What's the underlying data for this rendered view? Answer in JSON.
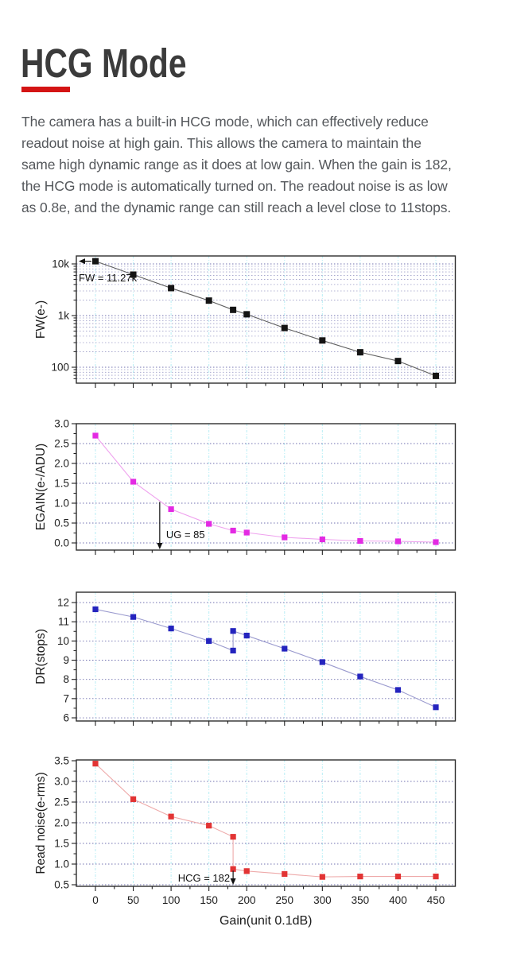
{
  "header": {
    "title": "HCG Mode",
    "accent_color": "#d41414",
    "paragraph_lines": [
      "The camera has a built-in HCG mode, which can effectively reduce",
      "readout noise at high gain. This allows the camera to maintain the",
      "same high dynamic range as it does at low gain. When the gain is 182,",
      "the HCG mode is automatically turned on. The readout noise is as low",
      "as 0.8e, and the dynamic range can still reach a level close to 11stops."
    ]
  },
  "chart_style": {
    "frame_color": "#2d2d2d",
    "tick_color": "#222222",
    "grid_vertical_color": "#b8eef5",
    "grid_horizontal_color": "#7272b0",
    "grid_horizontal_minor_color": "#9d9dc8",
    "annotation_color": "#111111"
  },
  "chart_data": [
    {
      "type": "line",
      "name": "full-well",
      "ylabel": "FW(e-)",
      "yscale": "log",
      "ylim": [
        49,
        14250
      ],
      "y_tick_labels": [
        {
          "v": 10000,
          "label": "10k"
        },
        {
          "v": 1000,
          "label": "1k"
        },
        {
          "v": 100,
          "label": "100"
        }
      ],
      "x": [
        0,
        50,
        100,
        150,
        182,
        200,
        250,
        300,
        350,
        400,
        450
      ],
      "y": [
        11270,
        6200,
        3400,
        1950,
        1290,
        1060,
        575,
        330,
        195,
        132,
        68
      ],
      "marker_color": "#141414",
      "line_color": "#5f5f5f",
      "annotation": {
        "text": "FW = 11.27k",
        "target_value": 11270
      }
    },
    {
      "type": "line",
      "name": "egain",
      "ylabel": "EGAIN(e-/ADU)",
      "yscale": "linear",
      "ylim": [
        -0.18,
        3.0
      ],
      "y_tick_labels": [
        {
          "v": 3.0,
          "label": "3.0"
        },
        {
          "v": 2.5,
          "label": "2.5"
        },
        {
          "v": 2.0,
          "label": "2.0"
        },
        {
          "v": 1.5,
          "label": "1.5"
        },
        {
          "v": 1.0,
          "label": "1.0"
        },
        {
          "v": 0.5,
          "label": "0.5"
        },
        {
          "v": 0.0,
          "label": "0.0"
        }
      ],
      "x": [
        0,
        50,
        100,
        150,
        182,
        200,
        250,
        300,
        350,
        400,
        450
      ],
      "y": [
        2.7,
        1.54,
        0.85,
        0.48,
        0.31,
        0.26,
        0.14,
        0.09,
        0.05,
        0.04,
        0.02
      ],
      "marker_color": "#e32ae3",
      "line_color": "#efa2ee",
      "annotation": {
        "text": "UG = 85",
        "target_x": 85
      }
    },
    {
      "type": "line",
      "name": "dynamic-range",
      "ylabel": "DR(stops)",
      "yscale": "linear",
      "ylim": [
        5.83,
        12.54
      ],
      "y_tick_labels": [
        {
          "v": 12,
          "label": "12"
        },
        {
          "v": 11,
          "label": "11"
        },
        {
          "v": 10,
          "label": "10"
        },
        {
          "v": 9,
          "label": "9"
        },
        {
          "v": 8,
          "label": "8"
        },
        {
          "v": 7,
          "label": "7"
        },
        {
          "v": 6,
          "label": "6"
        }
      ],
      "x": [
        0,
        50,
        100,
        150,
        182,
        182,
        200,
        250,
        300,
        350,
        400,
        450
      ],
      "y": [
        11.65,
        11.25,
        10.65,
        10.0,
        9.5,
        10.52,
        10.28,
        9.6,
        8.9,
        8.15,
        7.45,
        6.55
      ],
      "marker_color": "#2424be",
      "line_color": "#9a9ace",
      "annotation": null
    },
    {
      "type": "line",
      "name": "read-noise",
      "ylabel": "Read noise(e-rms)",
      "yscale": "linear",
      "ylim": [
        0.46,
        3.52
      ],
      "y_tick_labels": [
        {
          "v": 3.5,
          "label": "3.5"
        },
        {
          "v": 3.0,
          "label": "3.0"
        },
        {
          "v": 2.5,
          "label": "2.5"
        },
        {
          "v": 2.0,
          "label": "2.0"
        },
        {
          "v": 1.5,
          "label": "1.5"
        },
        {
          "v": 1.0,
          "label": "1.0"
        },
        {
          "v": 0.5,
          "label": "0.5"
        }
      ],
      "x": [
        0,
        50,
        100,
        150,
        182,
        182,
        200,
        250,
        300,
        350,
        400,
        450
      ],
      "y": [
        3.43,
        2.57,
        2.15,
        1.93,
        1.66,
        0.88,
        0.83,
        0.76,
        0.69,
        0.7,
        0.7,
        0.7
      ],
      "marker_color": "#e23434",
      "line_color": "#eeaaaa",
      "annotation": {
        "text": "HCG = 182",
        "target_x": 182
      }
    }
  ],
  "x_axis": {
    "label": "Gain(unit 0.1dB)",
    "range": [
      -25,
      476
    ],
    "major_ticks": [
      0,
      50,
      100,
      150,
      200,
      250,
      300,
      350,
      400,
      450
    ],
    "tick_labels": [
      "0",
      "50",
      "100",
      "150",
      "200",
      "250",
      "300",
      "350",
      "400",
      "450"
    ]
  }
}
